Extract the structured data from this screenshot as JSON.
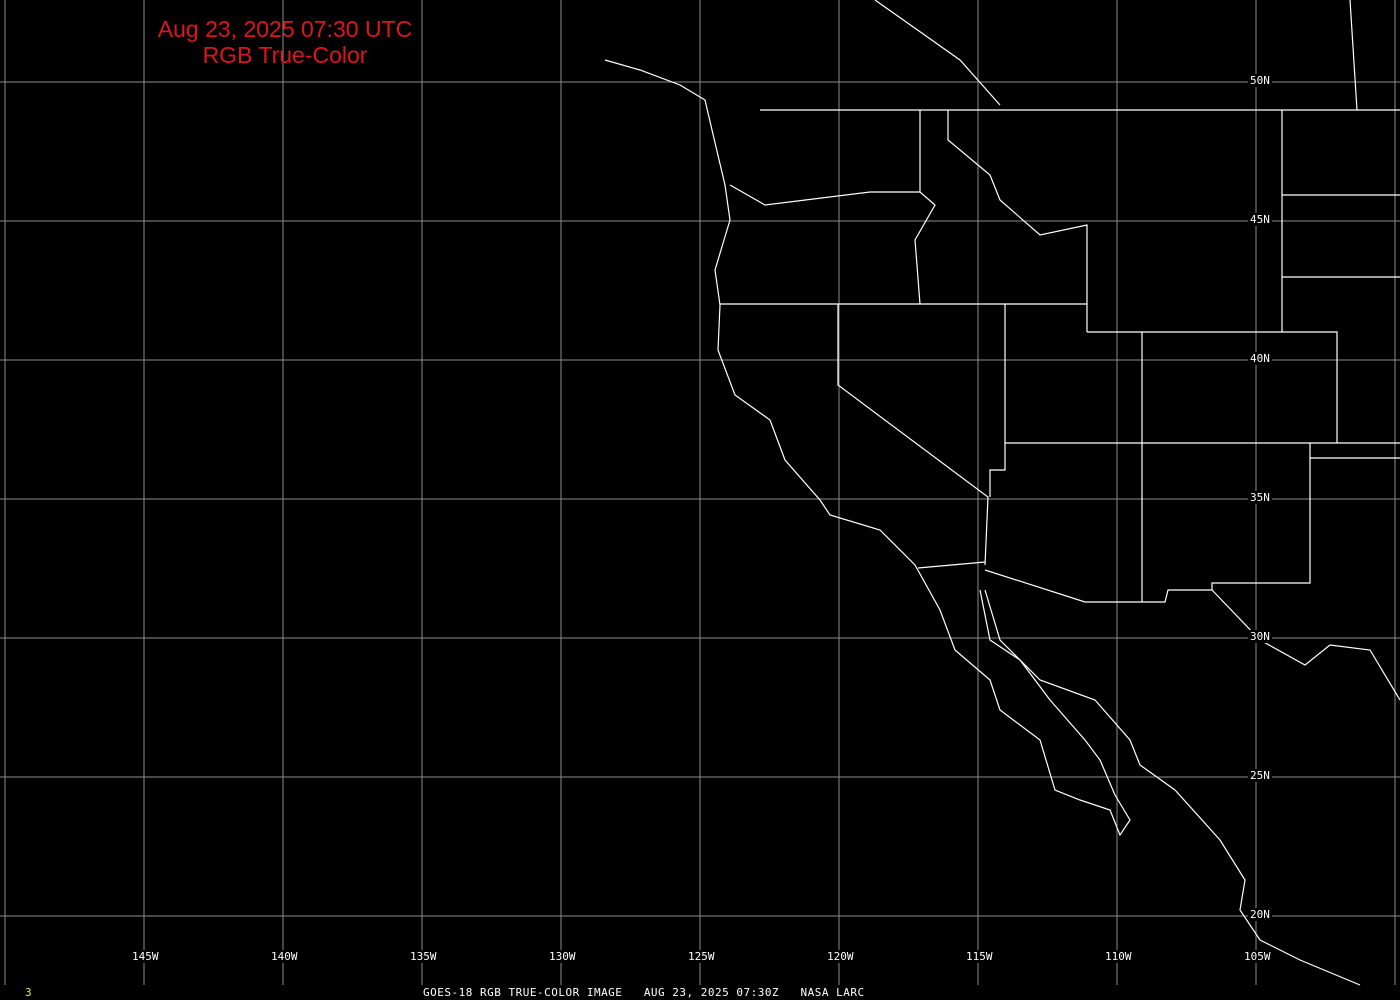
{
  "title": {
    "line1": "Aug 23, 2025 07:30 UTC",
    "line2": "RGB True-Color",
    "color": "#e0141e"
  },
  "longitude_labels": [
    "145W",
    "140W",
    "135W",
    "130W",
    "125W",
    "120W",
    "115W",
    "110W",
    "105W"
  ],
  "latitude_labels": [
    "50N",
    "45N",
    "40N",
    "35N",
    "30N",
    "25N",
    "20N"
  ],
  "footer": {
    "frame_number": "3",
    "product": "GOES-18 RGB TRUE-COLOR IMAGE",
    "timestamp": "AUG 23, 2025 07:30Z",
    "source": "NASA LARC"
  },
  "colors": {
    "background": "#000000",
    "grid": "#8c8c8c",
    "coastline": "#ffffff"
  }
}
